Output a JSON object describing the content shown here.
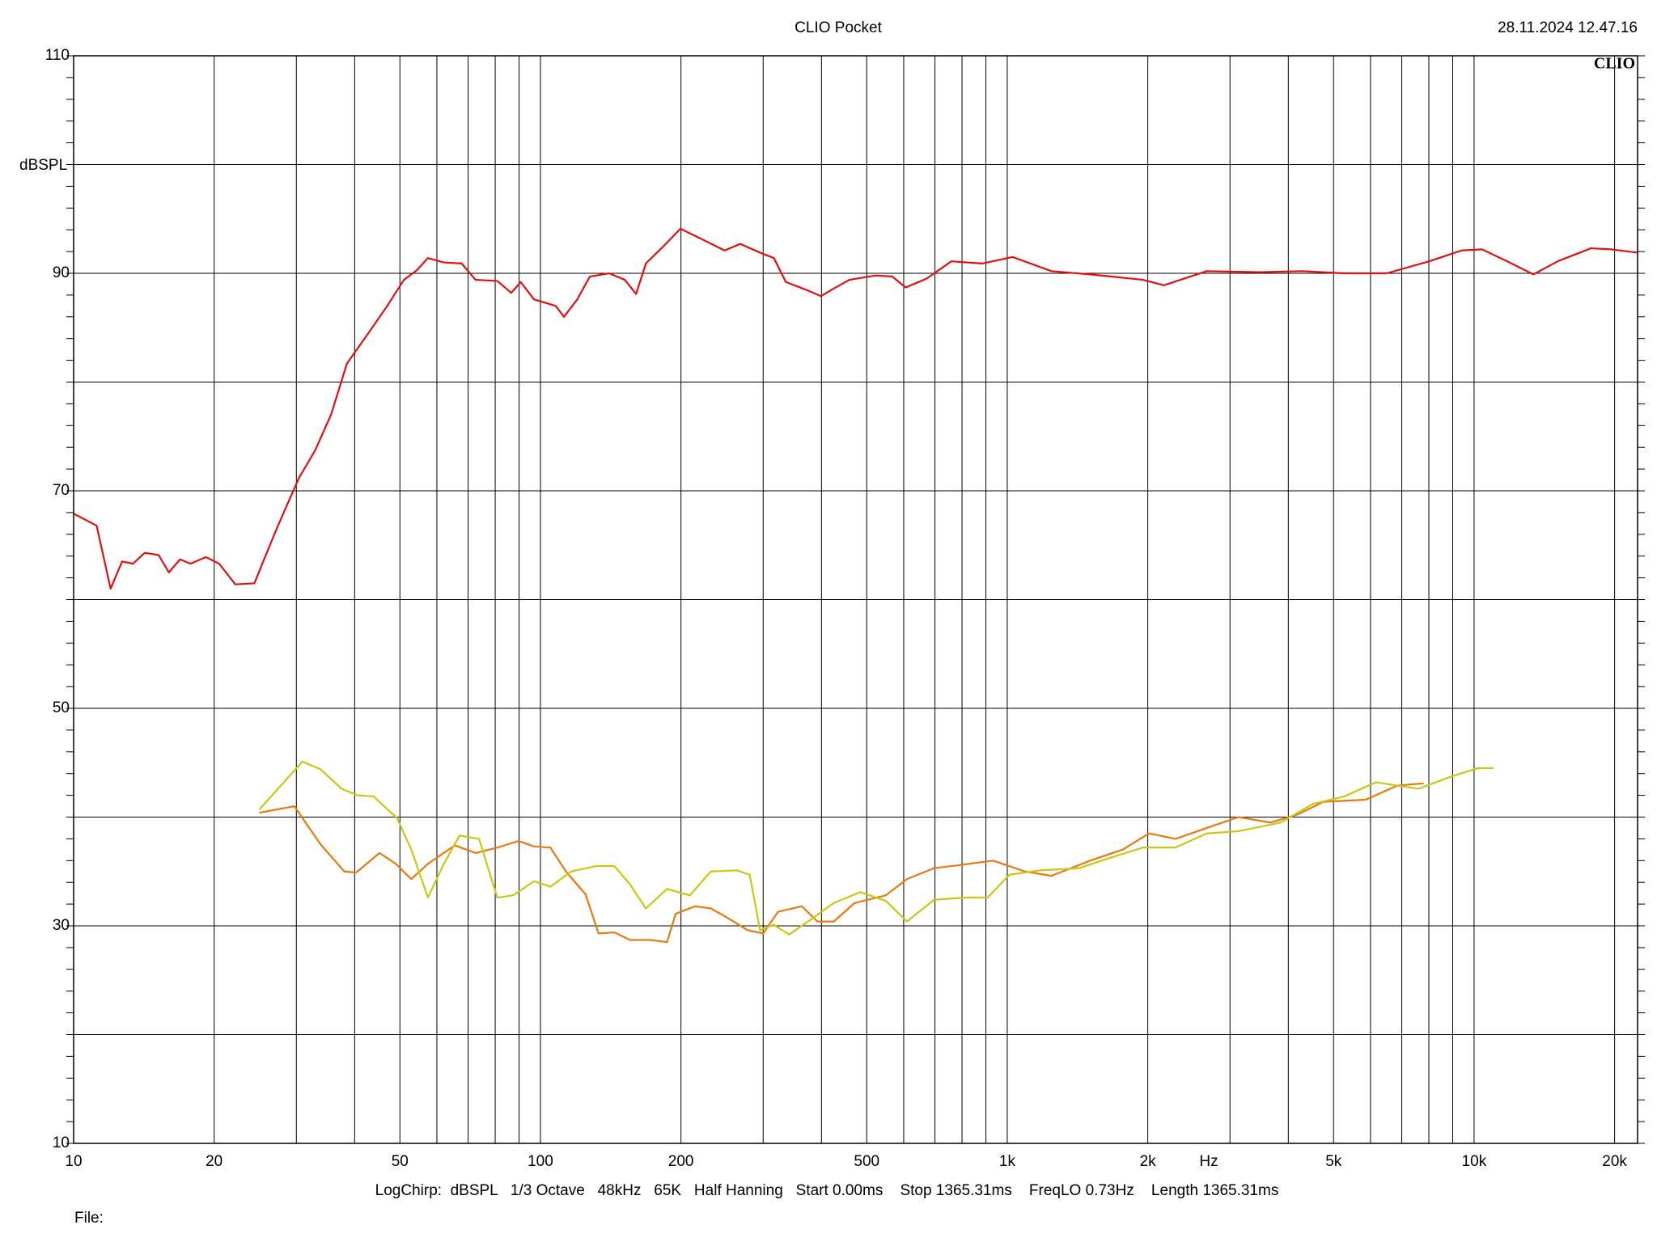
{
  "chart_data": {
    "type": "line",
    "title": "CLIO Pocket",
    "timestamp": "28.11.2024 12.47.16",
    "logo": "CLIO",
    "y_label": "dBSPL",
    "x_label": "Hz",
    "footer": "LogChirp:  dBSPL   1/3 Octave   48kHz   65K   Half Hanning   Start 0.00ms    Stop 1365.31ms    FreqLO 0.73Hz    Length 1365.31ms",
    "file_label": "File:",
    "xscale": "log",
    "xlim": [
      10,
      22400
    ],
    "ylim": [
      10,
      110
    ],
    "xticks": [
      10,
      20,
      50,
      100,
      200,
      500,
      {
        "value": 1000,
        "label": "1k"
      },
      {
        "value": 2000,
        "label": "2k"
      },
      {
        "value": 5000,
        "label": "5k"
      },
      {
        "value": 10000,
        "label": "10k"
      },
      {
        "value": 20000,
        "label": "20k"
      }
    ],
    "xgrid": [
      30,
      40,
      60,
      70,
      80,
      90,
      300,
      400,
      600,
      700,
      800,
      900,
      3000,
      4000,
      6000,
      7000,
      8000,
      9000
    ],
    "yticks": [
      10,
      30,
      50,
      70,
      90,
      110
    ],
    "ygrid": [
      20,
      40,
      60,
      80,
      100
    ],
    "yminor_step": 2,
    "grid": true,
    "series": [
      {
        "color": "#e01010",
        "x": [
          10,
          11.2,
          12.0,
          12.7,
          13.4,
          14.2,
          15.2,
          16.0,
          16.9,
          17.8,
          19.2,
          20.5,
          22.2,
          24.4,
          25.3,
          27.4,
          30.4,
          32.9,
          35.6,
          38.5,
          42.8,
          46.8,
          51.0,
          54.4,
          57.4,
          62.1,
          67.8,
          72.6,
          80.8,
          86.6,
          90.7,
          96.9,
          107.8,
          112.3,
          119.9,
          127.6,
          140.3,
          151.6,
          160.3,
          168.2,
          182.6,
          199.5,
          220.3,
          248,
          267.9,
          295.4,
          316.3,
          335.4,
          370,
          399,
          425,
          459,
          522,
          567,
          606,
          671,
          759,
          884,
          1027,
          1243,
          1507,
          1672,
          1953,
          2165,
          2675,
          3473,
          4277,
          5272,
          6500,
          8012,
          9400,
          10400,
          11900,
          13400,
          15100,
          17800,
          19700,
          22400
        ],
        "values": [
          67.9,
          66.8,
          61.0,
          63.5,
          63.3,
          64.3,
          64.1,
          62.5,
          63.7,
          63.3,
          63.9,
          63.3,
          61.4,
          61.5,
          63.2,
          66.8,
          71.2,
          73.7,
          77.0,
          81.7,
          84.5,
          86.9,
          89.4,
          90.3,
          91.4,
          91.0,
          90.9,
          89.4,
          89.3,
          88.2,
          89.2,
          87.6,
          87.0,
          86.0,
          87.6,
          89.7,
          90.0,
          89.4,
          88.1,
          90.9,
          92.4,
          94.1,
          93.2,
          92.1,
          92.7,
          91.9,
          91.4,
          89.2,
          88.5,
          87.9,
          88.6,
          89.4,
          89.8,
          89.7,
          88.7,
          89.5,
          91.1,
          90.9,
          91.5,
          90.2,
          89.9,
          89.7,
          89.4,
          88.9,
          90.2,
          90.1,
          90.2,
          90.0,
          90.0,
          91.1,
          92.1,
          92.2,
          91.0,
          89.9,
          91.1,
          92.3,
          92.2,
          91.9
        ]
      },
      {
        "color": "#e87a10",
        "x": [
          25,
          29.7,
          33.8,
          38,
          40.3,
          45.2,
          49,
          52.9,
          57.4,
          65.5,
          72.6,
          80.8,
          89.8,
          96.9,
          105,
          113.4,
          124.9,
          133.2,
          144,
          155.6,
          172.5,
          186.7,
          194.8,
          214.4,
          231.7,
          248,
          277.8,
          300,
          323,
          363,
          392,
          425,
          471,
          549,
          610,
          697,
          795,
          932,
          1091,
          1243,
          1507,
          1765,
          2013,
          2293,
          2675,
          3130,
          3662,
          4169,
          4752,
          5860,
          6852,
          7800
        ],
        "values": [
          40.4,
          41.0,
          37.5,
          35.0,
          34.9,
          36.7,
          35.7,
          34.3,
          35.7,
          37.4,
          36.7,
          37.2,
          37.8,
          37.3,
          37.2,
          35.0,
          32.9,
          29.3,
          29.4,
          28.7,
          28.7,
          28.5,
          31.1,
          31.8,
          31.6,
          30.9,
          29.6,
          29.3,
          31.3,
          31.8,
          30.4,
          30.4,
          32.1,
          32.8,
          34.3,
          35.3,
          35.6,
          36.0,
          35.0,
          34.6,
          36.0,
          37.0,
          38.5,
          38.0,
          39.0,
          40.0,
          39.5,
          40.2,
          41.4,
          41.6,
          42.9,
          43.1
        ]
      },
      {
        "color": "#c8c814",
        "x": [
          25,
          27.4,
          30.9,
          33.8,
          37.5,
          40.6,
          43.9,
          49.3,
          52.9,
          57.4,
          62.1,
          67.1,
          73.9,
          80.8,
          87.4,
          96.9,
          105,
          116.4,
          131.7,
          144,
          155.6,
          168.2,
          186.7,
          208.9,
          231.7,
          263.7,
          280.7,
          295.4,
          316,
          341,
          380,
          425,
          484,
          549,
          610,
          697,
          817,
          908,
          1011,
          1178,
          1426,
          1672,
          1953,
          2293,
          2675,
          3130,
          3860,
          4508,
          5272,
          6160,
          7600,
          8900,
          10200,
          11000
        ],
        "values": [
          40.7,
          42.6,
          45.1,
          44.4,
          42.6,
          42.0,
          41.9,
          39.9,
          37.0,
          32.6,
          35.7,
          38.3,
          38.0,
          32.6,
          32.8,
          34.1,
          33.6,
          35.0,
          35.5,
          35.5,
          33.8,
          31.6,
          33.4,
          32.8,
          35.0,
          35.1,
          34.7,
          29.6,
          30.1,
          29.2,
          30.6,
          32.1,
          33.1,
          32.3,
          30.4,
          32.4,
          32.6,
          32.6,
          34.7,
          35.1,
          35.3,
          36.3,
          37.2,
          37.2,
          38.5,
          38.7,
          39.5,
          41.2,
          41.9,
          43.2,
          42.6,
          43.7,
          44.5,
          44.5
        ]
      }
    ]
  }
}
